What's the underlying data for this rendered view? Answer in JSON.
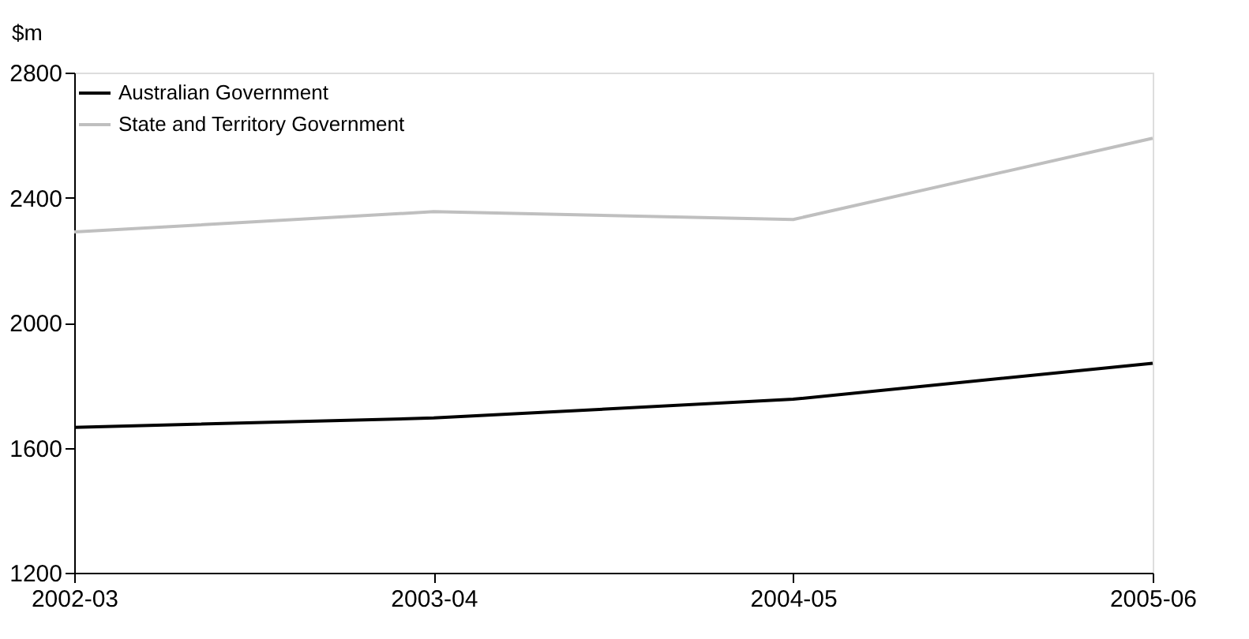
{
  "chart_data": {
    "type": "line",
    "ylabel": "$m",
    "categories": [
      "2002-03",
      "2003-04",
      "2004-05",
      "2005-06"
    ],
    "series": [
      {
        "name": "Australian Government",
        "color": "#000000",
        "values": [
          1665,
          1695,
          1755,
          1870
        ]
      },
      {
        "name": "State and Territory Government",
        "color": "#bfbfbf",
        "values": [
          2290,
          2355,
          2330,
          2590
        ]
      }
    ],
    "ylim": [
      1200,
      2800
    ],
    "yticks": [
      1200,
      1600,
      2000,
      2400,
      2800
    ],
    "grid": false,
    "legend": "top left",
    "marker": "none",
    "line_style": "solid"
  }
}
